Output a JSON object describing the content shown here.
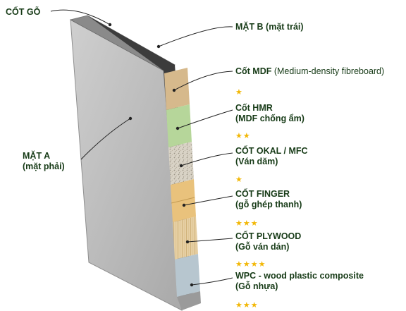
{
  "labels": {
    "cot_go": "CỐT GỖ",
    "mat_b": "MẶT B (mặt trái)",
    "mat_a_line1": "MẶT A",
    "mat_a_line2": "(mặt phải)"
  },
  "cores": [
    {
      "name": "Cốt MDF",
      "desc": "(Medium-density fibreboard)",
      "rating": "★",
      "texture": "mdf-texture"
    },
    {
      "name": "Cốt HMR",
      "desc": "(MDF chống ẩm)",
      "rating": "★★",
      "texture": "hmr-texture"
    },
    {
      "name": "CỐT OKAL / MFC",
      "desc": "(Ván dăm)",
      "rating": "★",
      "texture": "okal-texture"
    },
    {
      "name": "CỐT FINGER",
      "desc": "(gỗ ghép thanh)",
      "rating": "★★★",
      "texture": "finger-texture"
    },
    {
      "name": "CỐT PLYWOOD",
      "desc": "(Gỗ ván dán)",
      "rating": "★★★★",
      "texture": "plywood-texture"
    },
    {
      "name": "WPC - wood plastic composite",
      "desc": "(Gỗ nhựa)",
      "rating": "★★★",
      "texture": "wpc-texture"
    }
  ],
  "colors": {
    "panel_face": "#b9b9b9",
    "panel_top": "#8a8a8a",
    "back_edge": "#3c3c3c",
    "star": "#f2b705",
    "text": "#173b17"
  }
}
